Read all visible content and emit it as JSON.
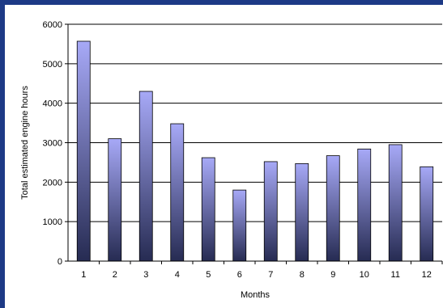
{
  "chart_data": {
    "type": "bar",
    "title": "",
    "xlabel": "Months",
    "ylabel": "Total estimated engine hours",
    "categories": [
      "1",
      "2",
      "3",
      "4",
      "5",
      "6",
      "7",
      "8",
      "9",
      "10",
      "11",
      "12"
    ],
    "values": [
      5570,
      3100,
      4300,
      3480,
      2620,
      1800,
      2520,
      2470,
      2670,
      2840,
      2950,
      2390
    ],
    "ylim": [
      0,
      6000
    ],
    "yticks": [
      "0",
      "1000",
      "2000",
      "3000",
      "4000",
      "5000",
      "6000"
    ],
    "grid": true,
    "legend": "none"
  },
  "colors": {
    "frame": "#1d3a86",
    "panel": "#ffffff",
    "bar_top": "#a7a9f7",
    "bar_bottom": "#262b52",
    "bar_stroke": "#000000",
    "gridline": "#000000"
  }
}
